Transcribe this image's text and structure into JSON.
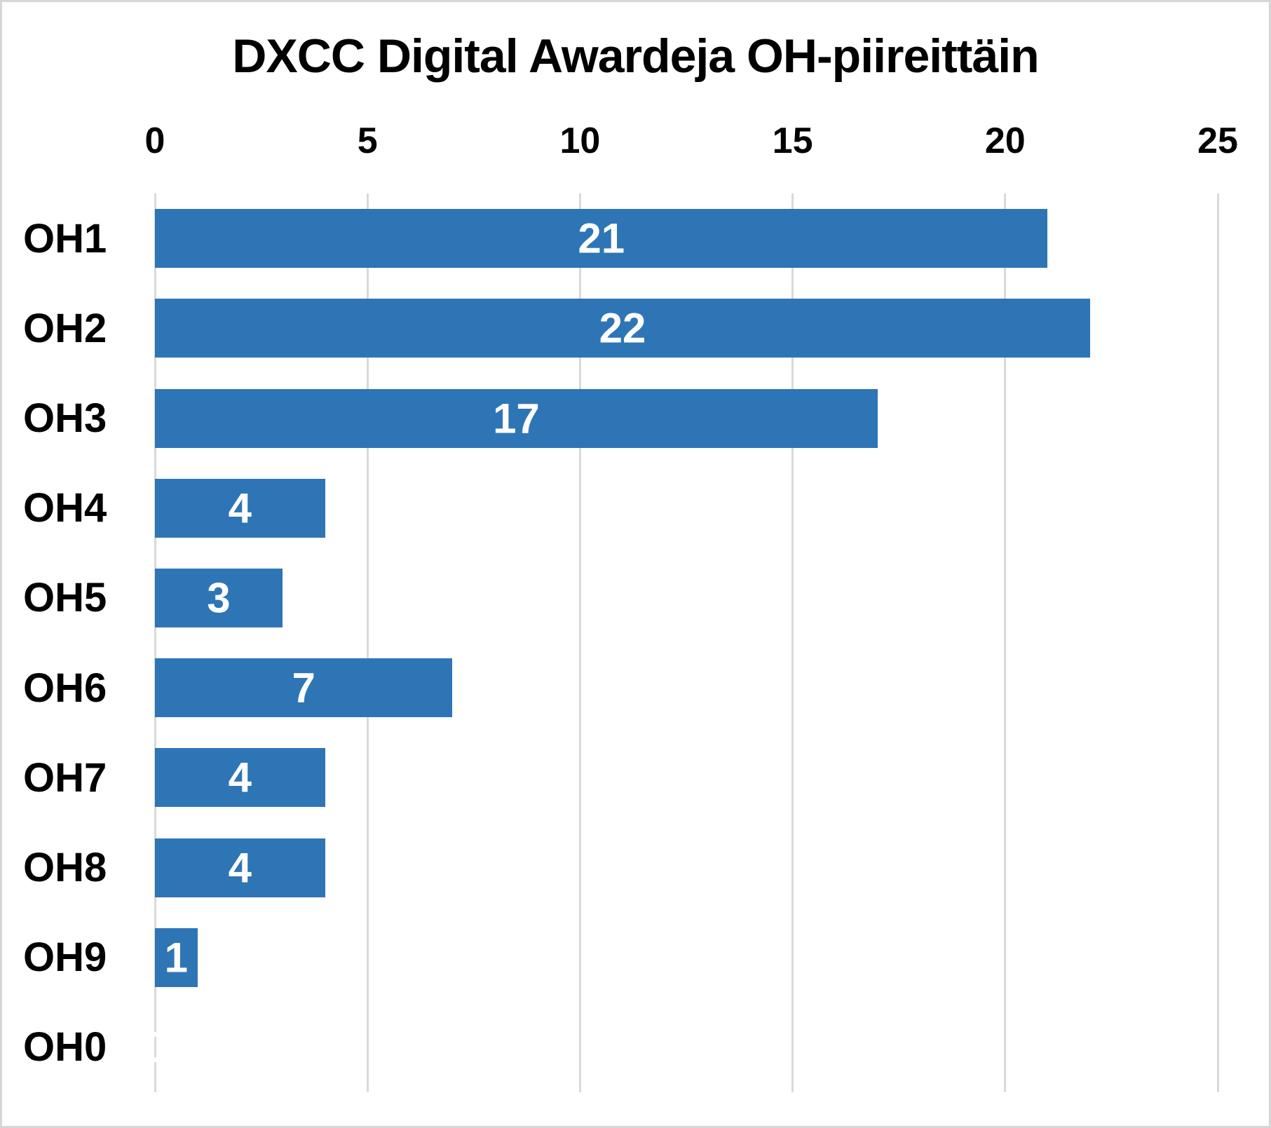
{
  "title": "DXCC Digital Awardeja OH-piireittäin",
  "colors": {
    "bar": "#2E75B6",
    "gridline": "#D9D9D9",
    "text": "#000000",
    "value_label": "#FFFFFF",
    "frame_border": "#D6D6D6",
    "background": "#FFFFFF"
  },
  "chart_data": {
    "type": "bar",
    "orientation": "horizontal",
    "title": "DXCC Digital Awardeja OH-piireittäin",
    "categories": [
      "OH1",
      "OH2",
      "OH3",
      "OH4",
      "OH5",
      "OH6",
      "OH7",
      "OH8",
      "OH9",
      "OH0"
    ],
    "values": [
      21,
      22,
      17,
      4,
      3,
      7,
      4,
      4,
      1,
      0
    ],
    "xlabel": "",
    "ylabel": "",
    "xlim": [
      0,
      25
    ],
    "xticks": [
      0,
      5,
      10,
      15,
      20,
      25
    ],
    "tick_labels": [
      "0",
      "5",
      "10",
      "15",
      "20",
      "25"
    ],
    "grid": true,
    "legend": false,
    "data_labels": "inside-center",
    "axis_position": "top"
  }
}
